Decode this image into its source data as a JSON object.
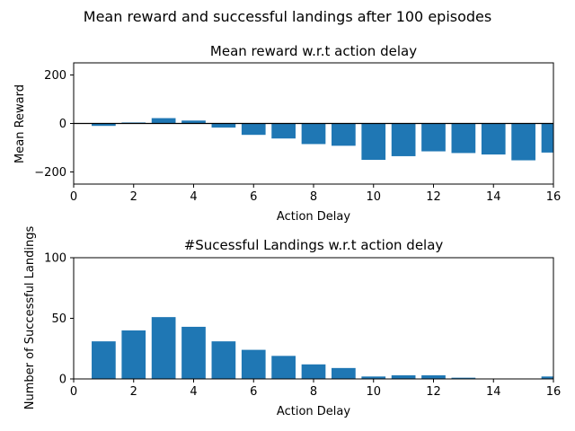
{
  "suptitle": "Mean reward and successful landings after 100 episodes",
  "chart_data": [
    {
      "type": "bar",
      "title": "Mean reward w.r.t action delay",
      "xlabel": "Action Delay",
      "ylabel": "Mean Reward",
      "xlim": [
        0,
        16
      ],
      "ylim": [
        -250,
        250
      ],
      "xticks": [
        "0",
        "2",
        "4",
        "6",
        "8",
        "10",
        "12",
        "14",
        "16"
      ],
      "yticks": [
        "−200",
        "0",
        "200"
      ],
      "x": [
        1,
        2,
        3,
        4,
        5,
        6,
        7,
        8,
        9,
        10,
        11,
        12,
        13,
        14,
        15,
        16
      ],
      "values": [
        -10,
        4,
        22,
        12,
        -17,
        -47,
        -62,
        -85,
        -92,
        -150,
        -135,
        -115,
        -122,
        -128,
        -152,
        -120
      ],
      "color": "#1f77b4",
      "zero_line": true,
      "grid": false
    },
    {
      "type": "bar",
      "title": "#Sucessful Landings w.r.t action delay",
      "xlabel": "Action Delay",
      "ylabel": "Number of Successful Landings",
      "xlim": [
        0,
        16
      ],
      "ylim": [
        0,
        100
      ],
      "xticks": [
        "0",
        "2",
        "4",
        "6",
        "8",
        "10",
        "12",
        "14",
        "16"
      ],
      "yticks": [
        "0",
        "50",
        "100"
      ],
      "x": [
        1,
        2,
        3,
        4,
        5,
        6,
        7,
        8,
        9,
        10,
        11,
        12,
        13,
        14,
        15,
        16
      ],
      "values": [
        31,
        40,
        51,
        43,
        31,
        24,
        19,
        12,
        9,
        2,
        3,
        3,
        1,
        0,
        0,
        2
      ],
      "color": "#1f77b4",
      "grid": false
    }
  ]
}
